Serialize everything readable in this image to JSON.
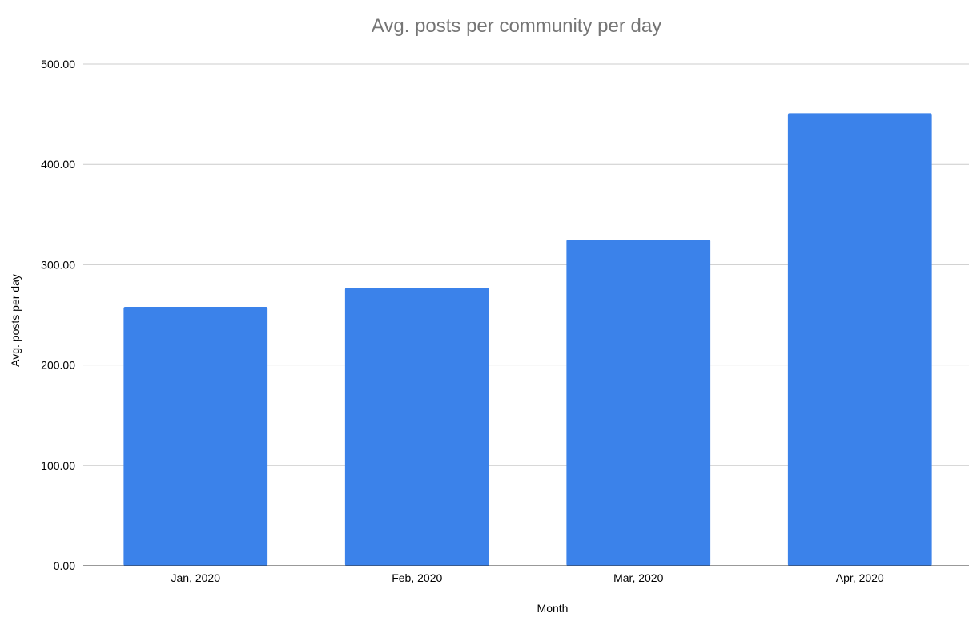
{
  "chart_data": {
    "type": "bar",
    "title": "Avg. posts per community per day",
    "xlabel": "Month",
    "ylabel": "Avg. posts per day",
    "categories": [
      "Jan, 2020",
      "Feb, 2020",
      "Mar, 2020",
      "Apr, 2020"
    ],
    "series": [
      {
        "values": [
          258,
          277,
          325,
          451
        ]
      }
    ],
    "ylim": [
      0,
      500
    ],
    "yticks": [
      0,
      100,
      200,
      300,
      400,
      500
    ],
    "ytick_labels": [
      "0.00",
      "100.00",
      "200.00",
      "300.00",
      "400.00",
      "500.00"
    ],
    "grid": true,
    "legend": "none",
    "bar_color": "#3b82ea",
    "title_color": "#757575",
    "grid_color": "#cccccc"
  }
}
